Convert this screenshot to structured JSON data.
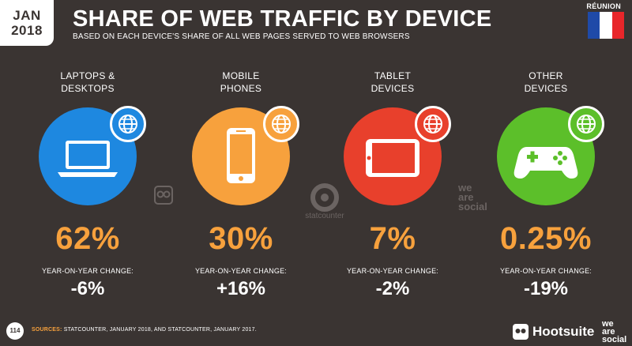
{
  "header": {
    "month": "JAN",
    "year": "2018",
    "title": "SHARE OF WEB TRAFFIC BY DEVICE",
    "subtitle": "BASED ON EACH DEVICE'S SHARE OF ALL WEB PAGES SERVED TO WEB BROWSERS",
    "country": "RÉUNION",
    "flag_colors": [
      "#1f4aa8",
      "#ffffff",
      "#e8262a"
    ]
  },
  "devices": [
    {
      "label_line1": "LAPTOPS &",
      "label_line2": "DESKTOPS",
      "share": "62%",
      "yoy_label": "YEAR-ON-YEAR CHANGE:",
      "yoy": "-6%",
      "color": "#1e88e0",
      "icon": "laptop-icon"
    },
    {
      "label_line1": "MOBILE",
      "label_line2": "PHONES",
      "share": "30%",
      "yoy_label": "YEAR-ON-YEAR CHANGE:",
      "yoy": "+16%",
      "color": "#f7a13d",
      "icon": "mobile-phone-icon"
    },
    {
      "label_line1": "TABLET",
      "label_line2": "DEVICES",
      "share": "7%",
      "yoy_label": "YEAR-ON-YEAR CHANGE:",
      "yoy": "-2%",
      "color": "#e8402c",
      "icon": "tablet-icon"
    },
    {
      "label_line1": "OTHER",
      "label_line2": "DEVICES",
      "share": "0.25%",
      "yoy_label": "YEAR-ON-YEAR CHANGE:",
      "yoy": "-19%",
      "color": "#5cbf2a",
      "icon": "game-controller-icon"
    }
  ],
  "watermarks": {
    "statcounter": "statcounter",
    "was_1": "we",
    "was_2": "are",
    "was_3": "social"
  },
  "footer": {
    "page": "114",
    "sources_label": "SOURCES:",
    "sources_text": "STATCOUNTER, JANUARY 2018, AND STATCOUNTER, JANUARY 2017.",
    "hootsuite": "Hootsuite",
    "was_1": "we",
    "was_2": "are",
    "was_3": "social"
  }
}
